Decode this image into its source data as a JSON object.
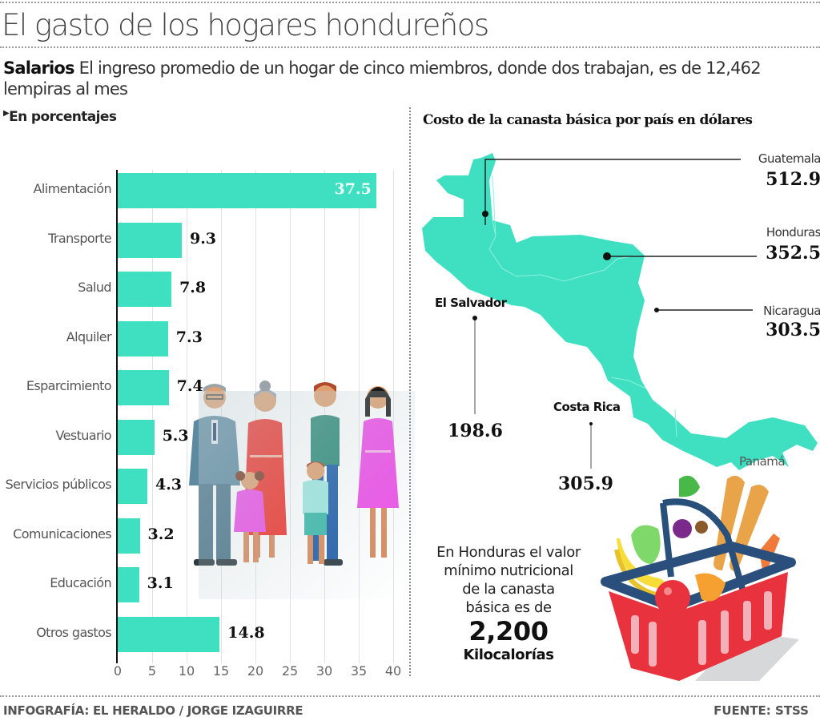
{
  "header": {
    "title": "El gasto de los hogares hondureños",
    "subtitle_label": "Salarios",
    "subtitle_text": " El ingreso promedio de un hogar de cinco miembros, donde dos trabajan, es de 12,462 lempiras al mes",
    "unit_label": "En porcentajes"
  },
  "chart_data": [
    {
      "type": "bar",
      "orientation": "horizontal",
      "title": "El gasto de los hogares hondureños",
      "subtitle": "En porcentajes",
      "categories": [
        "Alimentación",
        "Transporte",
        "Salud",
        "Alquiler",
        "Esparcimiento",
        "Vestuario",
        "Servicios públicos",
        "Comunicaciones",
        "Educación",
        "Otros gastos"
      ],
      "values": [
        37.5,
        9.3,
        7.8,
        7.3,
        7.4,
        5.3,
        4.3,
        3.2,
        3.1,
        14.8
      ],
      "value_labels": [
        "37.5",
        "9.3",
        "7.8",
        "7.3",
        "7.4",
        "5.3",
        "4.3",
        "3.2",
        "3.1",
        "14.8"
      ],
      "xlabel": "",
      "ylabel": "",
      "xlim": [
        0,
        40
      ],
      "xticks": [
        "0",
        "5",
        "10",
        "15",
        "20",
        "25",
        "30",
        "35",
        "40"
      ],
      "grid": true,
      "bar_color": "#3ee0c1"
    },
    {
      "type": "map-annotations",
      "title": "Costo de la canasta básica por país en  dólares",
      "categories": [
        "Guatemala",
        "Honduras",
        "Nicaragua",
        "El Salvador",
        "Costa Rica",
        "Panamá"
      ],
      "values": [
        512.9,
        352.5,
        303.5,
        198.6,
        305.9,
        null
      ],
      "value_labels": [
        "512.9",
        "352.5",
        "303.5",
        "198.6",
        "305.9",
        ""
      ],
      "map_color": "#3ee0c1"
    }
  ],
  "map": {
    "title": "Costo de la canasta básica por país en  dólares",
    "countries": {
      "guatemala": {
        "name": "Guatemala",
        "value": "512.9"
      },
      "honduras": {
        "name": "Honduras",
        "value": "352.5"
      },
      "nicaragua": {
        "name": "Nicaragua",
        "value": "303.5"
      },
      "el_salvador": {
        "name": "El Salvador",
        "value": "198.6"
      },
      "costa_rica": {
        "name": "Costa Rica",
        "value": "305.9"
      },
      "panama": {
        "name": "Panamá"
      }
    }
  },
  "note": {
    "line1": "En Honduras el valor",
    "line2": "mínimo nutricional",
    "line3": "de la canasta",
    "line4": "básica es de",
    "value": "2,200",
    "unit": "Kilocalorías"
  },
  "footer": {
    "credit": "INFOGRAFÍA: EL HERALDO / JORGE IZAGUIRRE",
    "source": "FUENTE: STSS"
  },
  "colors": {
    "accent": "#3ee0c1",
    "text": "#111111",
    "grid": "#e0e3e3"
  }
}
